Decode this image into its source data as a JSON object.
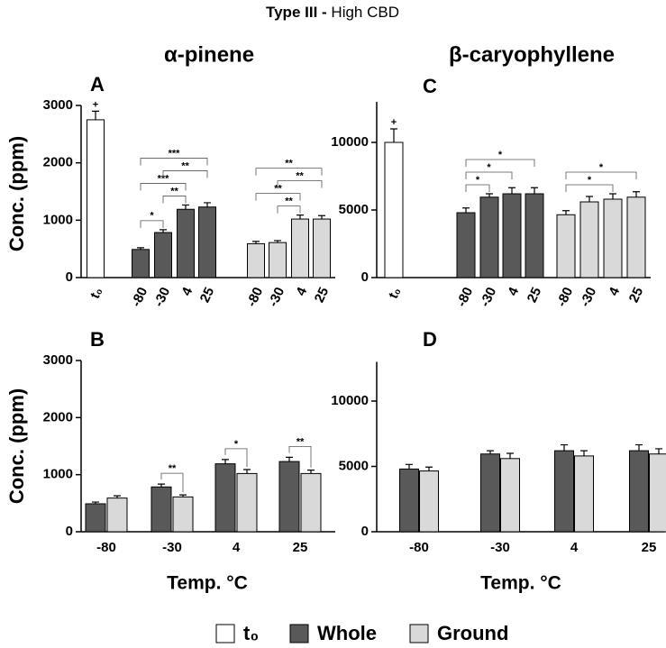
{
  "title_parts": [
    "Type III -",
    "High CBD"
  ],
  "legend": [
    {
      "name": "t₀",
      "color": "#ffffff"
    },
    {
      "name": "Whole",
      "color": "#595959"
    },
    {
      "name": "Ground",
      "color": "#d9d9d9"
    }
  ],
  "chart_data": [
    {
      "type": "bar",
      "label": "A",
      "title": "α-pinene",
      "y_label": "Conc. (ppm)",
      "categories": [
        "t₀",
        "-80",
        "-30",
        "4",
        "25",
        "-80",
        "-30",
        "4",
        "25"
      ],
      "values": [
        2750,
        490,
        785,
        1190,
        1230,
        590,
        610,
        1020,
        1020
      ],
      "errors": [
        150,
        30,
        50,
        75,
        75,
        40,
        35,
        70,
        60
      ],
      "colors": [
        "#ffffff",
        "#595959",
        "#595959",
        "#595959",
        "#595959",
        "#d9d9d9",
        "#d9d9d9",
        "#d9d9d9",
        "#d9d9d9"
      ],
      "ylim": [
        0,
        3000
      ],
      "yticks": [
        0,
        1000,
        2000,
        3000
      ],
      "annotations": [
        {
          "index": 0,
          "label": "+"
        }
      ],
      "brackets": [
        {
          "from": 1,
          "to": 2,
          "label": "*"
        },
        {
          "from": 2,
          "to": 3,
          "label": "**"
        },
        {
          "from": 1,
          "to": 3,
          "label": "***"
        },
        {
          "from": 2,
          "to": 4,
          "label": "**"
        },
        {
          "from": 1,
          "to": 4,
          "label": "***"
        },
        {
          "from": 6,
          "to": 7,
          "label": "**"
        },
        {
          "from": 5,
          "to": 7,
          "label": "**"
        },
        {
          "from": 6,
          "to": 8,
          "label": "**"
        },
        {
          "from": 5,
          "to": 8,
          "label": "**"
        }
      ]
    },
    {
      "type": "bar",
      "label": "C",
      "title": "β-caryophyllene",
      "categories": [
        "t₀",
        "-80",
        "-30",
        "4",
        "25",
        "-80",
        "-30",
        "4",
        "25"
      ],
      "values": [
        10000,
        4800,
        5950,
        6200,
        6200,
        4650,
        5600,
        5800,
        5950
      ],
      "errors": [
        1000,
        350,
        250,
        450,
        450,
        300,
        400,
        400,
        400
      ],
      "colors": [
        "#ffffff",
        "#595959",
        "#595959",
        "#595959",
        "#595959",
        "#d9d9d9",
        "#d9d9d9",
        "#d9d9d9",
        "#d9d9d9"
      ],
      "ylim": [
        0,
        13000
      ],
      "yticks": [
        0,
        5000,
        10000
      ],
      "annotations": [
        {
          "index": 0,
          "label": "+"
        }
      ],
      "brackets": [
        {
          "from": 1,
          "to": 2,
          "label": "*"
        },
        {
          "from": 1,
          "to": 3,
          "label": "*"
        },
        {
          "from": 1,
          "to": 4,
          "label": "*"
        },
        {
          "from": 5,
          "to": 7,
          "label": "*"
        },
        {
          "from": 5,
          "to": 8,
          "label": "*"
        }
      ]
    },
    {
      "type": "grouped_bar",
      "label": "B",
      "y_label": "Conc. (ppm)",
      "x_label": "Temp. °C",
      "categories": [
        "-80",
        "-30",
        "4",
        "25"
      ],
      "series": [
        {
          "color": "#595959",
          "values": [
            490,
            785,
            1190,
            1230
          ],
          "errors": [
            30,
            50,
            75,
            75
          ]
        },
        {
          "color": "#d9d9d9",
          "values": [
            590,
            610,
            1020,
            1020
          ],
          "errors": [
            40,
            35,
            70,
            60
          ]
        }
      ],
      "ylim": [
        0,
        3000
      ],
      "yticks": [
        0,
        1000,
        2000,
        3000
      ],
      "brackets": [
        {
          "category": 1,
          "label": "**"
        },
        {
          "category": 2,
          "label": "*"
        },
        {
          "category": 3,
          "label": "**"
        }
      ]
    },
    {
      "type": "grouped_bar",
      "label": "D",
      "x_label": "Temp. °C",
      "categories": [
        "-80",
        "-30",
        "4",
        "25"
      ],
      "series": [
        {
          "color": "#595959",
          "values": [
            4800,
            5950,
            6200,
            6200
          ],
          "errors": [
            350,
            250,
            450,
            450
          ]
        },
        {
          "color": "#d9d9d9",
          "values": [
            4650,
            5600,
            5800,
            5950
          ],
          "errors": [
            300,
            400,
            400,
            400
          ]
        }
      ],
      "ylim": [
        0,
        13000
      ],
      "yticks": [
        0,
        5000,
        10000
      ]
    }
  ]
}
